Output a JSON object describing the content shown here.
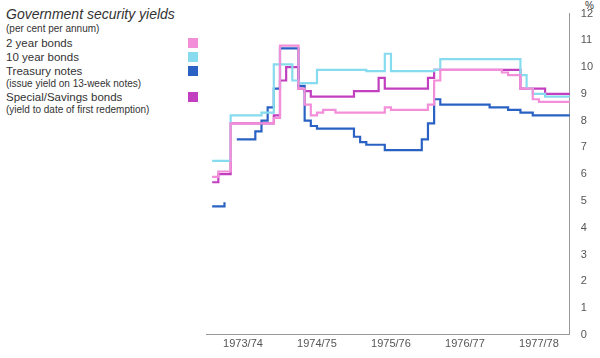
{
  "chart_data": {
    "type": "line",
    "title": "Government security yields",
    "subtitle": "(per cent per annum)",
    "y_label": "%",
    "line_style": "step",
    "grid": false,
    "legend": "left",
    "categories": [
      null,
      null,
      null,
      null,
      null,
      null,
      "1973/74",
      null,
      null,
      null,
      null,
      null,
      null,
      null,
      null,
      null,
      null,
      null,
      "1974/75",
      null,
      null,
      null,
      null,
      null,
      null,
      null,
      null,
      null,
      null,
      null,
      "1975/76",
      null,
      null,
      null,
      null,
      null,
      null,
      null,
      null,
      null,
      null,
      null,
      "1976/77",
      null,
      null,
      null,
      null,
      null,
      null,
      null,
      null,
      null,
      null,
      null,
      "1977/78",
      null,
      null,
      null,
      null,
      null
    ],
    "ylim": [
      0,
      12
    ],
    "yticks": [
      0,
      1,
      2,
      3,
      4,
      5,
      6,
      7,
      8,
      9,
      10,
      11,
      12
    ],
    "series": [
      {
        "name": "2 year bonds",
        "color": "#f28fd8",
        "values": [
          null,
          5.9,
          6.1,
          6.1,
          7.9,
          7.9,
          7.9,
          7.9,
          7.9,
          7.9,
          7.9,
          8.1,
          10.8,
          10.8,
          10.8,
          9.2,
          8.6,
          8.2,
          8.3,
          8.4,
          8.4,
          8.3,
          8.3,
          8.3,
          8.3,
          8.3,
          8.3,
          8.3,
          8.3,
          8.5,
          8.4,
          8.4,
          8.4,
          8.4,
          8.4,
          8.4,
          8.6,
          9.5,
          9.9,
          9.9,
          9.9,
          9.9,
          9.9,
          9.9,
          9.9,
          9.9,
          9.9,
          9.9,
          9.8,
          9.7,
          9.7,
          9.2,
          9.2,
          8.8,
          8.7,
          8.7,
          8.7,
          8.7,
          8.7,
          8.7
        ]
      },
      {
        "name": "10 year bonds",
        "color": "#86dcee",
        "values": [
          null,
          6.5,
          6.5,
          6.5,
          8.2,
          8.2,
          8.2,
          8.2,
          8.2,
          8.3,
          8.3,
          10.1,
          10.1,
          10.1,
          9.5,
          9.4,
          9.4,
          9.4,
          9.9,
          9.9,
          9.9,
          9.9,
          9.9,
          9.9,
          9.9,
          9.9,
          9.85,
          9.85,
          9.85,
          10.5,
          9.85,
          9.85,
          9.85,
          9.85,
          9.85,
          9.85,
          9.85,
          9.9,
          10.3,
          10.3,
          10.3,
          10.3,
          10.3,
          10.3,
          10.3,
          10.3,
          10.3,
          10.3,
          10.3,
          10.3,
          10.3,
          9.7,
          9.2,
          9.0,
          9.0,
          8.9,
          8.9,
          8.9,
          8.9,
          8.9
        ]
      },
      {
        "name": "Treasury notes",
        "note": "(issue yield on 13-week notes)",
        "color": "#2a62c4",
        "values": [
          null,
          4.8,
          4.8,
          4.95,
          null,
          7.3,
          7.3,
          7.3,
          7.6,
          8.0,
          8.5,
          9.2,
          10.7,
          10.7,
          10.7,
          9.3,
          8.0,
          7.8,
          7.7,
          7.7,
          7.7,
          7.7,
          7.7,
          7.7,
          7.4,
          7.2,
          7.1,
          7.1,
          7.1,
          6.9,
          6.9,
          6.9,
          6.9,
          6.9,
          6.9,
          7.3,
          7.9,
          8.8,
          8.6,
          8.6,
          8.6,
          8.6,
          8.6,
          8.6,
          8.6,
          8.6,
          8.5,
          8.5,
          8.5,
          8.4,
          8.4,
          8.3,
          8.3,
          8.2,
          8.2,
          8.2,
          8.2,
          8.2,
          8.2,
          8.2
        ]
      },
      {
        "name": "Special/Savings bonds",
        "note": "(yield to date of first redemption)",
        "color": "#c23fbf",
        "values": [
          null,
          5.7,
          6.0,
          6.0,
          7.9,
          7.9,
          7.9,
          7.9,
          7.9,
          7.9,
          7.9,
          8.2,
          9.5,
          10.0,
          10.0,
          9.2,
          9.1,
          8.9,
          8.9,
          8.9,
          8.9,
          8.9,
          8.9,
          8.9,
          9.1,
          9.1,
          9.1,
          9.1,
          9.6,
          9.2,
          9.2,
          9.2,
          9.2,
          9.2,
          9.2,
          9.2,
          9.6,
          9.9,
          9.9,
          9.9,
          9.9,
          9.9,
          9.9,
          9.9,
          9.9,
          9.9,
          9.9,
          9.9,
          9.9,
          9.9,
          9.9,
          9.2,
          9.2,
          9.2,
          9.2,
          9.0,
          9.0,
          9.0,
          9.0,
          9.0
        ]
      }
    ]
  }
}
